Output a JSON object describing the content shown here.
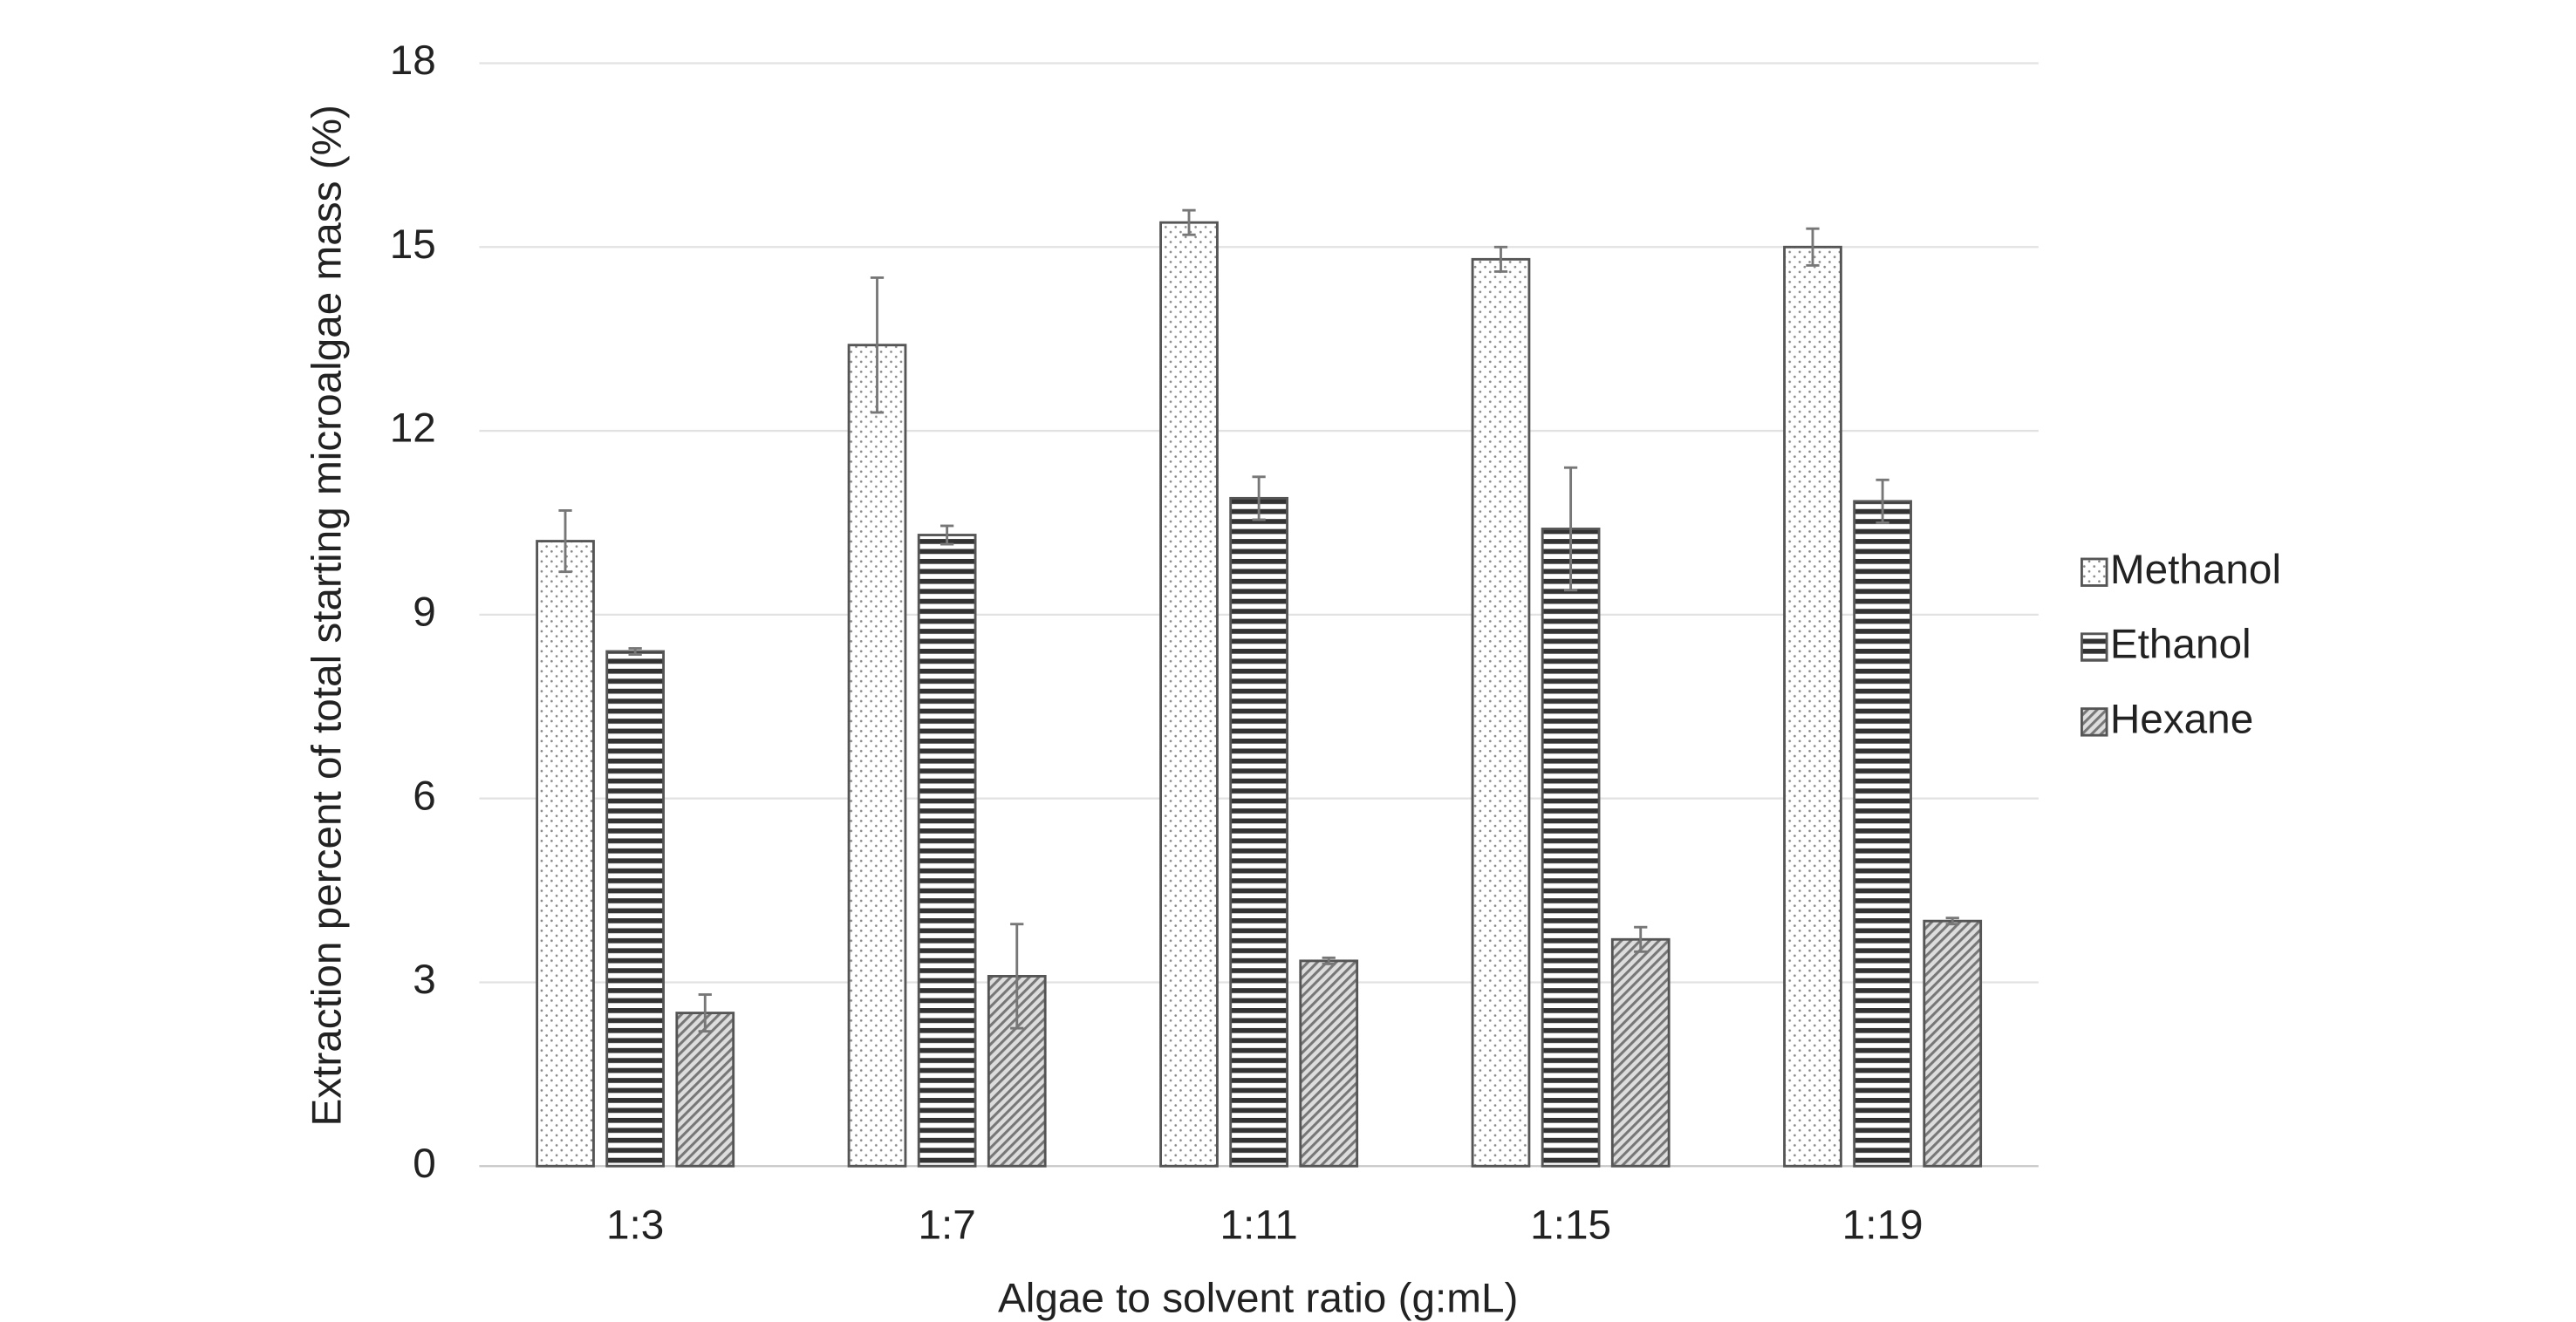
{
  "chart_data": {
    "type": "bar",
    "x_label": "Algae to solvent ratio (g:mL)",
    "y_label": "Extraction percent of total starting microalgae mass (%)",
    "categories": [
      "1:3",
      "1:7",
      "1:11",
      "1:15",
      "1:19"
    ],
    "series": [
      {
        "name": "Methanol",
        "color": "#555555",
        "pattern": "dots",
        "values": [
          10.2,
          13.4,
          15.4,
          14.8,
          15.0
        ],
        "errors": [
          0.5,
          1.1,
          0.2,
          0.2,
          0.3
        ]
      },
      {
        "name": "Ethanol",
        "color": "#555555",
        "pattern": "horizontal-lines",
        "values": [
          8.4,
          10.3,
          10.9,
          10.4,
          10.85
        ],
        "errors": [
          0.05,
          0.15,
          0.35,
          1.0,
          0.35
        ]
      },
      {
        "name": "Hexane",
        "color": "#555555",
        "pattern": "diagonal-lines",
        "values": [
          2.5,
          3.1,
          3.35,
          3.7,
          4.0
        ],
        "errors": [
          0.3,
          0.85,
          0.05,
          0.2,
          0.05
        ]
      }
    ],
    "ylim": [
      0,
      18
    ],
    "yticks": [
      0,
      3,
      6,
      9,
      12,
      15,
      18
    ],
    "grid": true,
    "legend": "right"
  }
}
